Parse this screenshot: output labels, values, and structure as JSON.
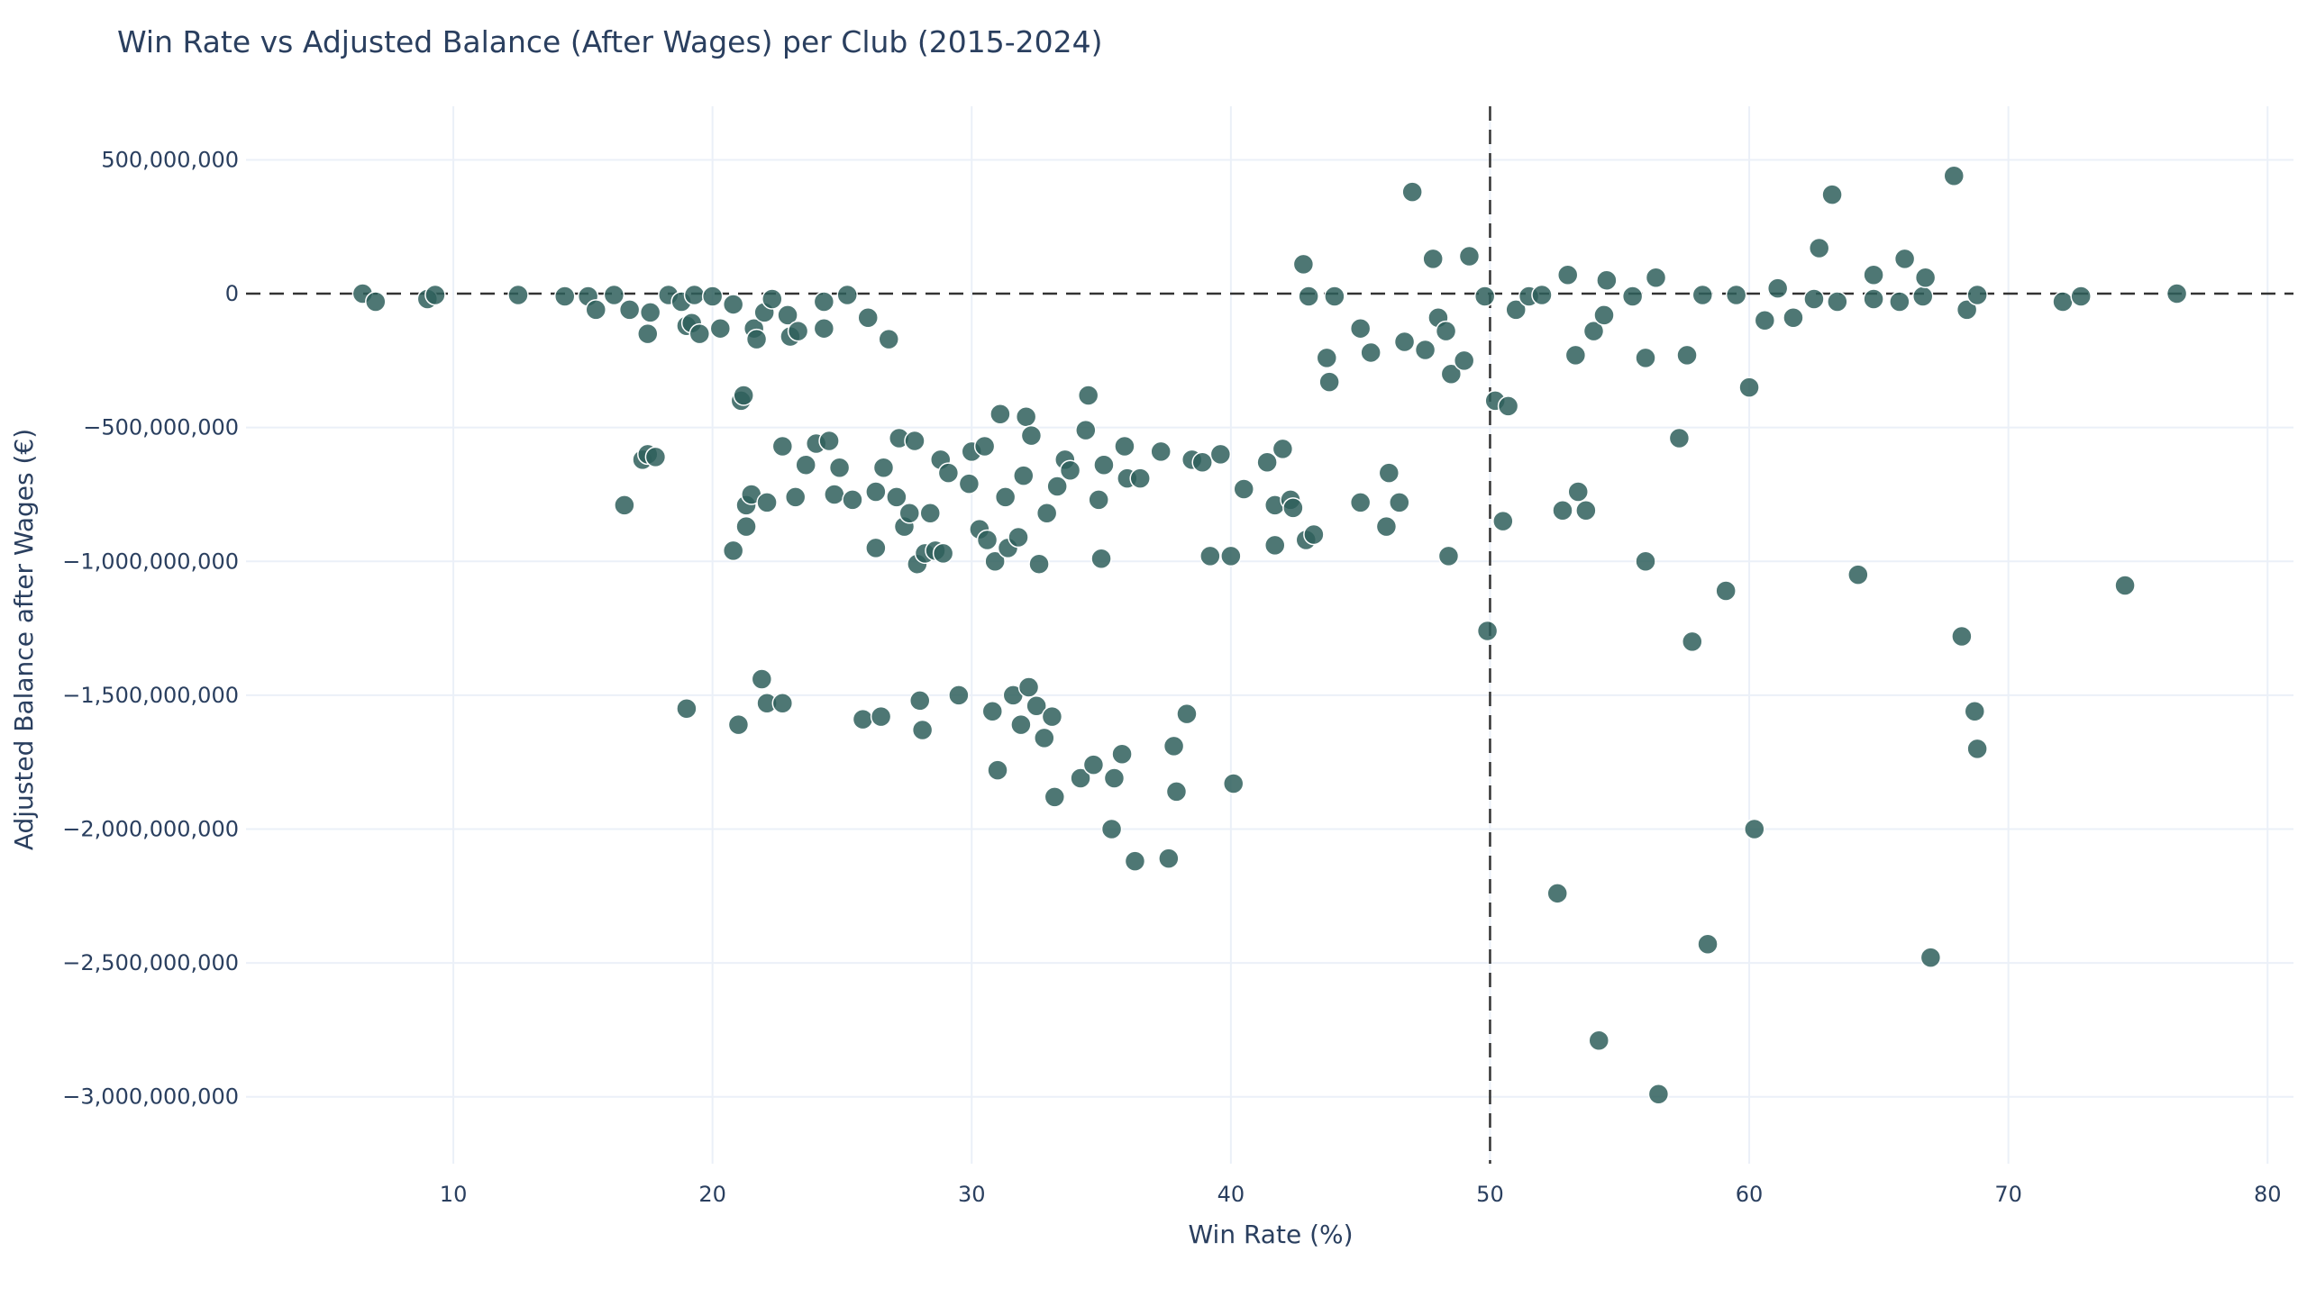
{
  "chart_data": {
    "type": "scatter",
    "title": "Win Rate vs Adjusted Balance (After Wages) per Club (2015-2024)",
    "xlabel": "Win Rate (%)",
    "ylabel": "Adjusted Balance after Wages (€)",
    "xlim": [
      2,
      81
    ],
    "ylim": [
      -3250000000,
      700000000
    ],
    "xticks": [
      10,
      20,
      30,
      40,
      50,
      60,
      70,
      80
    ],
    "yticks": [
      500000000,
      0,
      -500000000,
      -1000000000,
      -1500000000,
      -2000000000,
      -2500000000,
      -3000000000
    ],
    "xtick_labels": [
      "10",
      "20",
      "30",
      "40",
      "50",
      "60",
      "70",
      "80"
    ],
    "ytick_labels": [
      "500,000,000",
      "0",
      "−500,000,000",
      "−1,000,000,000",
      "−1,500,000,000",
      "−2,000,000,000",
      "−2,500,000,000",
      "−3,000,000,000"
    ],
    "reference_lines": {
      "x": 50,
      "y": 0
    },
    "grid": true,
    "marker_color": "#2f5f5c",
    "series": [
      {
        "points": [
          [
            6.5,
            0
          ],
          [
            7,
            -30000000
          ],
          [
            9,
            -20000000
          ],
          [
            9.3,
            -5000000
          ],
          [
            12.5,
            -5000000
          ],
          [
            14.3,
            -10000000
          ],
          [
            15.2,
            -10000000
          ],
          [
            15.5,
            -60000000
          ],
          [
            16.2,
            -5000000
          ],
          [
            16.8,
            -60000000
          ],
          [
            16.6,
            -790000000
          ],
          [
            17.3,
            -620000000
          ],
          [
            17.5,
            -600000000
          ],
          [
            17.8,
            -610000000
          ],
          [
            17.6,
            -70000000
          ],
          [
            17.5,
            -150000000
          ],
          [
            18.3,
            -5000000
          ],
          [
            18.8,
            -30000000
          ],
          [
            19,
            -120000000
          ],
          [
            19.2,
            -110000000
          ],
          [
            19.3,
            -5000000
          ],
          [
            19.5,
            -150000000
          ],
          [
            20,
            -10000000
          ],
          [
            20.3,
            -130000000
          ],
          [
            20.8,
            -40000000
          ],
          [
            20.8,
            -960000000
          ],
          [
            21.1,
            -400000000
          ],
          [
            21.2,
            -380000000
          ],
          [
            21.3,
            -790000000
          ],
          [
            21.3,
            -870000000
          ],
          [
            21.5,
            -750000000
          ],
          [
            21.6,
            -130000000
          ],
          [
            21.7,
            -170000000
          ],
          [
            22,
            -70000000
          ],
          [
            22.3,
            -20000000
          ],
          [
            22.1,
            -780000000
          ],
          [
            21.9,
            -1440000000
          ],
          [
            22.1,
            -1530000000
          ],
          [
            22.7,
            -1530000000
          ],
          [
            19,
            -1550000000
          ],
          [
            21,
            -1610000000
          ],
          [
            22.7,
            -570000000
          ],
          [
            22.9,
            -80000000
          ],
          [
            23,
            -160000000
          ],
          [
            23.2,
            -760000000
          ],
          [
            23.3,
            -140000000
          ],
          [
            23.6,
            -640000000
          ],
          [
            24,
            -560000000
          ],
          [
            24.3,
            -30000000
          ],
          [
            24.3,
            -130000000
          ],
          [
            24.5,
            -550000000
          ],
          [
            24.7,
            -750000000
          ],
          [
            24.9,
            -650000000
          ],
          [
            25.2,
            -5000000
          ],
          [
            25.4,
            -770000000
          ],
          [
            25.8,
            -1590000000
          ],
          [
            26,
            -90000000
          ],
          [
            26.3,
            -740000000
          ],
          [
            26.3,
            -950000000
          ],
          [
            26.6,
            -650000000
          ],
          [
            26.5,
            -1580000000
          ],
          [
            26.8,
            -170000000
          ],
          [
            27.1,
            -760000000
          ],
          [
            27.2,
            -540000000
          ],
          [
            27.4,
            -870000000
          ],
          [
            27.6,
            -820000000
          ],
          [
            27.8,
            -550000000
          ],
          [
            27.9,
            -1010000000
          ],
          [
            28,
            -1520000000
          ],
          [
            28.1,
            -1630000000
          ],
          [
            28.2,
            -970000000
          ],
          [
            28.4,
            -820000000
          ],
          [
            28.6,
            -960000000
          ],
          [
            28.8,
            -620000000
          ],
          [
            28.9,
            -970000000
          ],
          [
            29.1,
            -670000000
          ],
          [
            29.5,
            -1500000000
          ],
          [
            29.9,
            -710000000
          ],
          [
            30,
            -590000000
          ],
          [
            30.3,
            -880000000
          ],
          [
            30.5,
            -570000000
          ],
          [
            30.6,
            -920000000
          ],
          [
            30.8,
            -1560000000
          ],
          [
            30.9,
            -1000000000
          ],
          [
            31,
            -1780000000
          ],
          [
            31.1,
            -450000000
          ],
          [
            31.3,
            -760000000
          ],
          [
            31.4,
            -950000000
          ],
          [
            31.6,
            -1500000000
          ],
          [
            31.8,
            -910000000
          ],
          [
            31.9,
            -1610000000
          ],
          [
            32,
            -680000000
          ],
          [
            32.1,
            -460000000
          ],
          [
            32.2,
            -1470000000
          ],
          [
            32.3,
            -530000000
          ],
          [
            32.5,
            -1540000000
          ],
          [
            32.6,
            -1010000000
          ],
          [
            32.8,
            -1660000000
          ],
          [
            32.9,
            -820000000
          ],
          [
            33.1,
            -1580000000
          ],
          [
            33.2,
            -1880000000
          ],
          [
            33.3,
            -720000000
          ],
          [
            33.6,
            -620000000
          ],
          [
            33.8,
            -660000000
          ],
          [
            34.2,
            -1810000000
          ],
          [
            34.4,
            -510000000
          ],
          [
            34.5,
            -380000000
          ],
          [
            34.7,
            -1760000000
          ],
          [
            34.9,
            -770000000
          ],
          [
            35,
            -990000000
          ],
          [
            35.1,
            -640000000
          ],
          [
            35.4,
            -2000000000
          ],
          [
            35.5,
            -1810000000
          ],
          [
            35.8,
            -1720000000
          ],
          [
            35.9,
            -570000000
          ],
          [
            36,
            -690000000
          ],
          [
            36.3,
            -2120000000
          ],
          [
            36.5,
            -690000000
          ],
          [
            37.3,
            -590000000
          ],
          [
            37.6,
            -2110000000
          ],
          [
            37.8,
            -1690000000
          ],
          [
            37.9,
            -1860000000
          ],
          [
            38.3,
            -1570000000
          ],
          [
            38.5,
            -620000000
          ],
          [
            38.9,
            -630000000
          ],
          [
            39.2,
            -980000000
          ],
          [
            39.6,
            -600000000
          ],
          [
            40,
            -980000000
          ],
          [
            40.1,
            -1830000000
          ],
          [
            40.5,
            -730000000
          ],
          [
            41.4,
            -630000000
          ],
          [
            41.7,
            -940000000
          ],
          [
            41.7,
            -790000000
          ],
          [
            42,
            -580000000
          ],
          [
            42.3,
            -770000000
          ],
          [
            42.4,
            -800000000
          ],
          [
            42.9,
            -920000000
          ],
          [
            43.2,
            -900000000
          ],
          [
            43.7,
            -240000000
          ],
          [
            43.8,
            -330000000
          ],
          [
            42.8,
            110000000
          ],
          [
            43,
            -10000000
          ],
          [
            44,
            -10000000
          ],
          [
            45,
            -130000000
          ],
          [
            45.4,
            -220000000
          ],
          [
            45,
            -780000000
          ],
          [
            46,
            -870000000
          ],
          [
            46.1,
            -670000000
          ],
          [
            46.5,
            -780000000
          ],
          [
            46.7,
            -180000000
          ],
          [
            47,
            380000000
          ],
          [
            47.5,
            -210000000
          ],
          [
            47.8,
            130000000
          ],
          [
            48,
            -90000000
          ],
          [
            48.3,
            -140000000
          ],
          [
            48.4,
            -980000000
          ],
          [
            48.5,
            -300000000
          ],
          [
            49,
            -250000000
          ],
          [
            49.2,
            140000000
          ],
          [
            49.8,
            -10000000
          ],
          [
            49.9,
            -1260000000
          ],
          [
            50.2,
            -400000000
          ],
          [
            50.5,
            -850000000
          ],
          [
            50.7,
            -420000000
          ],
          [
            51,
            -60000000
          ],
          [
            51.5,
            -10000000
          ],
          [
            52,
            -5000000
          ],
          [
            52.6,
            -2240000000
          ],
          [
            52.8,
            -810000000
          ],
          [
            53,
            70000000
          ],
          [
            53.3,
            -230000000
          ],
          [
            53.4,
            -740000000
          ],
          [
            53.7,
            -810000000
          ],
          [
            54,
            -140000000
          ],
          [
            54.2,
            -2790000000
          ],
          [
            54.5,
            50000000
          ],
          [
            54.4,
            -80000000
          ],
          [
            55.5,
            -10000000
          ],
          [
            56,
            -240000000
          ],
          [
            56,
            -1000000000
          ],
          [
            56.4,
            60000000
          ],
          [
            56.5,
            -2990000000
          ],
          [
            57.3,
            -540000000
          ],
          [
            57.6,
            -230000000
          ],
          [
            57.8,
            -1300000000
          ],
          [
            58.2,
            -5000000
          ],
          [
            58.4,
            -2430000000
          ],
          [
            59.1,
            -1110000000
          ],
          [
            59.5,
            -5000000
          ],
          [
            60,
            -350000000
          ],
          [
            60.2,
            -2000000000
          ],
          [
            60.6,
            -100000000
          ],
          [
            61.1,
            20000000
          ],
          [
            61.7,
            -90000000
          ],
          [
            62.5,
            -20000000
          ],
          [
            62.7,
            170000000
          ],
          [
            63.2,
            370000000
          ],
          [
            63.4,
            -30000000
          ],
          [
            64.2,
            -1050000000
          ],
          [
            64.8,
            70000000
          ],
          [
            64.8,
            -20000000
          ],
          [
            65.8,
            -30000000
          ],
          [
            66,
            130000000
          ],
          [
            66.7,
            -10000000
          ],
          [
            66.8,
            60000000
          ],
          [
            67,
            -2480000000
          ],
          [
            67.9,
            440000000
          ],
          [
            68.2,
            -1280000000
          ],
          [
            68.4,
            -60000000
          ],
          [
            68.7,
            -1560000000
          ],
          [
            68.8,
            -1700000000
          ],
          [
            68.8,
            -5000000
          ],
          [
            72.1,
            -30000000
          ],
          [
            72.8,
            -10000000
          ],
          [
            74.5,
            -1090000000
          ],
          [
            76.5,
            0
          ]
        ]
      }
    ]
  }
}
